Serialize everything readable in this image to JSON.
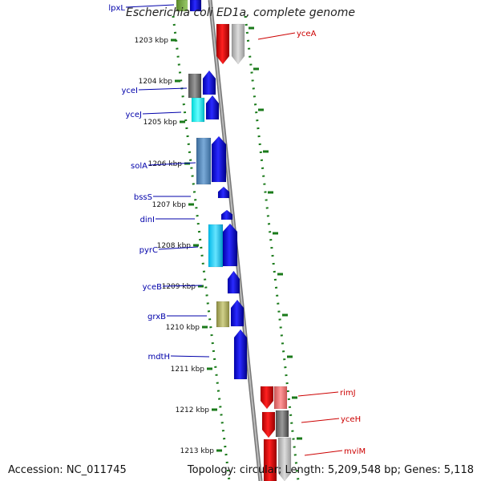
{
  "title": "Escherichia coli ED1a, complete genome",
  "footer": {
    "accession": "Accession: NC_011745",
    "topology": "Topology: circular; Length: 5,209,548 bp; Genes: 5,118"
  },
  "colors": {
    "tick": "#1a7a1a",
    "backbone": "#888888",
    "left_label": "#0000aa",
    "right_label": "#cc0000",
    "kbp_label": "#111111"
  },
  "kbp_ticks": [
    "1203 kbp",
    "1204 kbp",
    "1205 kbp",
    "1206 kbp",
    "1207 kbp",
    "1208 kbp",
    "1209 kbp",
    "1210 kbp",
    "1211 kbp",
    "1212 kbp",
    "1213 kbp"
  ],
  "left_genes": [
    "lpxL",
    "yceI",
    "yceJ",
    "solA",
    "bssS",
    "dinI",
    "pyrC",
    "yceB",
    "grxB",
    "mdtH"
  ],
  "right_genes": [
    "yceA",
    "rimJ",
    "yceH",
    "mviM"
  ]
}
